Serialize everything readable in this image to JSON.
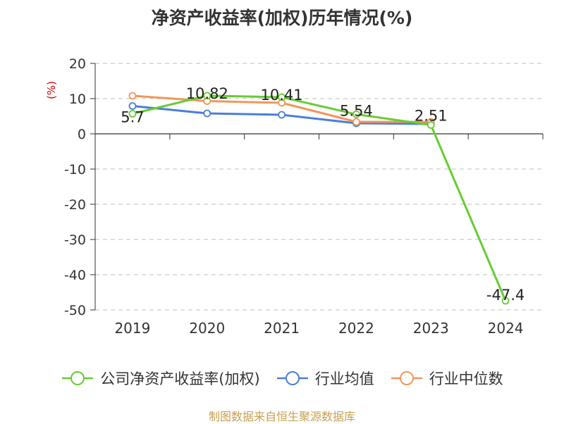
{
  "chart_data": {
    "type": "line",
    "title": "净资产收益率(加权)历年情况(%)",
    "ylabel": "(%)",
    "xlabel": "",
    "ylim": [
      -50,
      20
    ],
    "yticks": [
      20,
      10,
      0,
      -10,
      -20,
      -30,
      -40,
      -50
    ],
    "categories": [
      "2019",
      "2020",
      "2021",
      "2022",
      "2023",
      "2024"
    ],
    "grid": true,
    "legend_position": "bottom",
    "series": [
      {
        "name": "公司净资产收益率(加权)",
        "color": "#66cc33",
        "values": [
          5.7,
          10.82,
          10.41,
          5.54,
          2.51,
          -47.4
        ],
        "labels": [
          "5.7",
          "10.82",
          "10.41",
          "5.54",
          "2.51",
          "-47.4"
        ]
      },
      {
        "name": "行业均值",
        "color": "#4a7fd8",
        "values": [
          7.9,
          5.8,
          5.4,
          3.0,
          2.8,
          null
        ]
      },
      {
        "name": "行业中位数",
        "color": "#f2965c",
        "values": [
          10.8,
          9.3,
          8.8,
          3.4,
          3.4,
          null
        ]
      }
    ],
    "source": "制图数据来自恒生聚源数据库"
  }
}
